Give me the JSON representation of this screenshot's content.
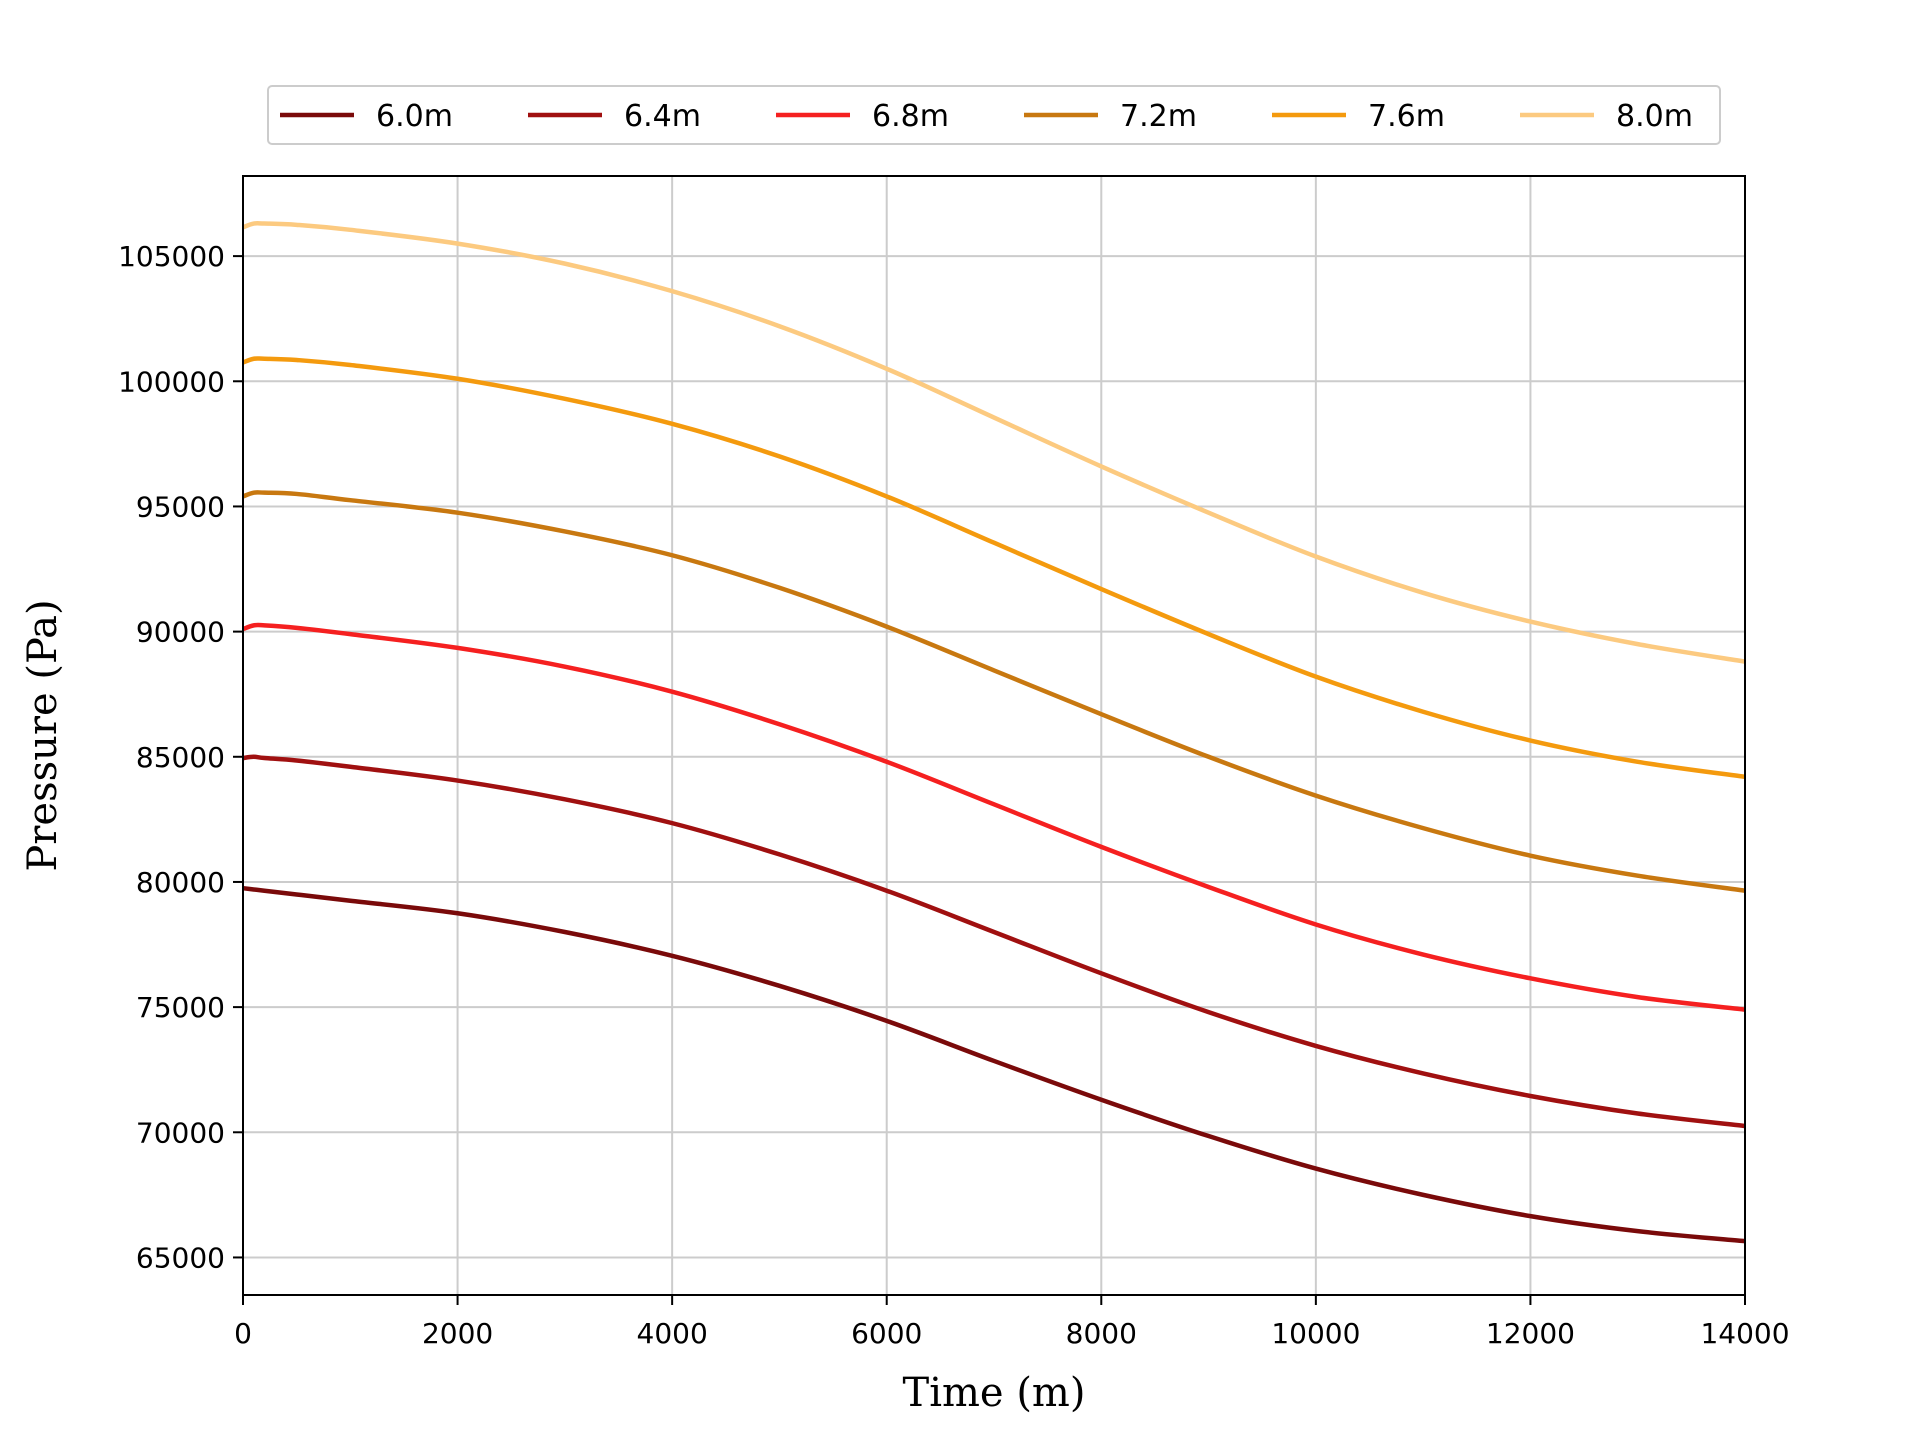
{
  "chart_data": {
    "type": "line",
    "title": "",
    "xlabel": "Time (m)",
    "ylabel": "Pressure (Pa)",
    "xlim": [
      0,
      14000
    ],
    "ylim": [
      63500,
      108200
    ],
    "xticks": [
      0,
      2000,
      4000,
      6000,
      8000,
      10000,
      12000,
      14000
    ],
    "yticks": [
      65000,
      70000,
      75000,
      80000,
      85000,
      90000,
      95000,
      100000,
      105000
    ],
    "grid": true,
    "legend_position": "top-center",
    "x": [
      0,
      100,
      200,
      500,
      1000,
      2000,
      3000,
      4000,
      5000,
      6000,
      7000,
      8000,
      9000,
      10000,
      11000,
      12000,
      13000,
      14000
    ],
    "series": [
      {
        "name": "6.0m",
        "color": "#7a0a0a",
        "values": [
          79750,
          79700,
          79650,
          79500,
          79250,
          78750,
          78000,
          77050,
          75850,
          74450,
          72850,
          71300,
          69850,
          68550,
          67500,
          66650,
          66050,
          65650
        ]
      },
      {
        "name": "6.4m",
        "color": "#a01010",
        "values": [
          84950,
          85000,
          84950,
          84850,
          84600,
          84050,
          83300,
          82350,
          81100,
          79650,
          78000,
          76350,
          74800,
          73450,
          72350,
          71450,
          70750,
          70250
        ]
      },
      {
        "name": "6.8m",
        "color": "#f52020",
        "values": [
          90100,
          90250,
          90250,
          90150,
          89900,
          89350,
          88600,
          87600,
          86300,
          84800,
          83100,
          81400,
          79800,
          78300,
          77100,
          76150,
          75400,
          74900
        ]
      },
      {
        "name": "7.2m",
        "color": "#c87810",
        "values": [
          95400,
          95550,
          95550,
          95500,
          95250,
          94750,
          94000,
          93050,
          91750,
          90200,
          88450,
          86700,
          85000,
          83450,
          82150,
          81050,
          80250,
          79650
        ]
      },
      {
        "name": "7.6m",
        "color": "#f49a0e",
        "values": [
          100750,
          100900,
          100900,
          100850,
          100650,
          100100,
          99300,
          98300,
          97000,
          95400,
          93550,
          91700,
          89900,
          88200,
          86800,
          85650,
          84800,
          84200
        ]
      },
      {
        "name": "8.0m",
        "color": "#fcca80",
        "values": [
          106150,
          106300,
          106300,
          106250,
          106050,
          105500,
          104700,
          103600,
          102200,
          100500,
          98550,
          96600,
          94750,
          93000,
          91550,
          90400,
          89500,
          88800
        ]
      }
    ]
  }
}
